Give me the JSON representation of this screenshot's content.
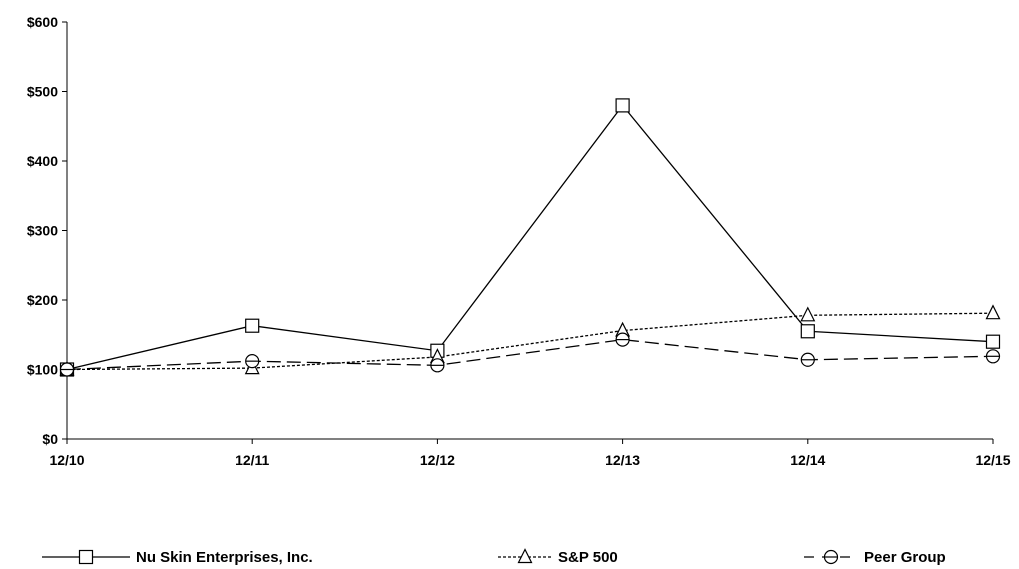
{
  "chart_data": {
    "type": "line",
    "title": "",
    "xlabel": "",
    "ylabel": "",
    "categories": [
      "12/10",
      "12/11",
      "12/12",
      "12/13",
      "12/14",
      "12/15"
    ],
    "ylim": [
      0,
      600
    ],
    "yticks": [
      0,
      100,
      200,
      300,
      400,
      500,
      600
    ],
    "ytick_labels": [
      "$0",
      "$100",
      "$200",
      "$300",
      "$400",
      "$500",
      "$600"
    ],
    "grid": false,
    "legend_position": "bottom",
    "series": [
      {
        "name": "Nu Skin Enterprises, Inc.",
        "values": [
          100,
          163,
          127,
          480,
          155,
          140
        ],
        "line_style": "solid",
        "marker": "square",
        "color": "#000000"
      },
      {
        "name": "S&P 500",
        "values": [
          100,
          102,
          118,
          156,
          178,
          181
        ],
        "line_style": "dotted",
        "marker": "triangle",
        "color": "#000000"
      },
      {
        "name": "Peer Group",
        "values": [
          100,
          112,
          106,
          143,
          114,
          119
        ],
        "line_style": "dashed",
        "marker": "circle",
        "color": "#000000"
      }
    ]
  }
}
